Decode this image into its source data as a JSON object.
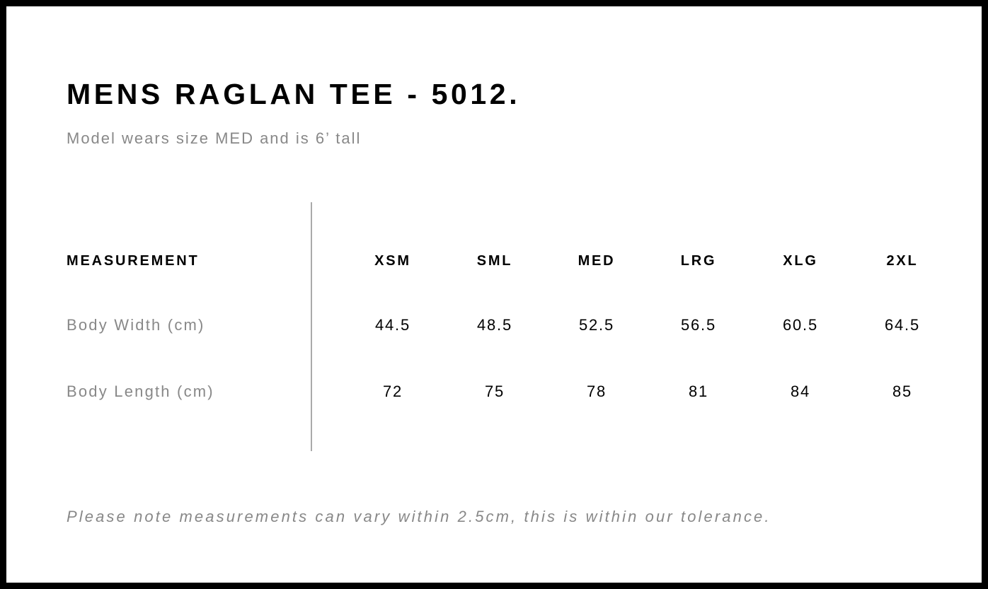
{
  "title": "MENS RAGLAN TEE - 5012.",
  "subtitle": "Model wears size MED and is 6’ tall",
  "table": {
    "header_label": "MEASUREMENT",
    "sizes": [
      "XSM",
      "SML",
      "MED",
      "LRG",
      "XLG",
      "2XL"
    ],
    "rows": [
      {
        "label": "Body Width (cm)",
        "values": [
          "44.5",
          "48.5",
          "52.5",
          "56.5",
          "60.5",
          "64.5"
        ]
      },
      {
        "label": "Body Length (cm)",
        "values": [
          "72",
          "75",
          "78",
          "81",
          "84",
          "85"
        ]
      }
    ]
  },
  "note": "Please note measurements can vary within 2.5cm, this is within our tolerance.",
  "colors": {
    "border": "#000000",
    "title": "#000000",
    "muted_text": "#888888",
    "divider": "#aaaaaa"
  }
}
